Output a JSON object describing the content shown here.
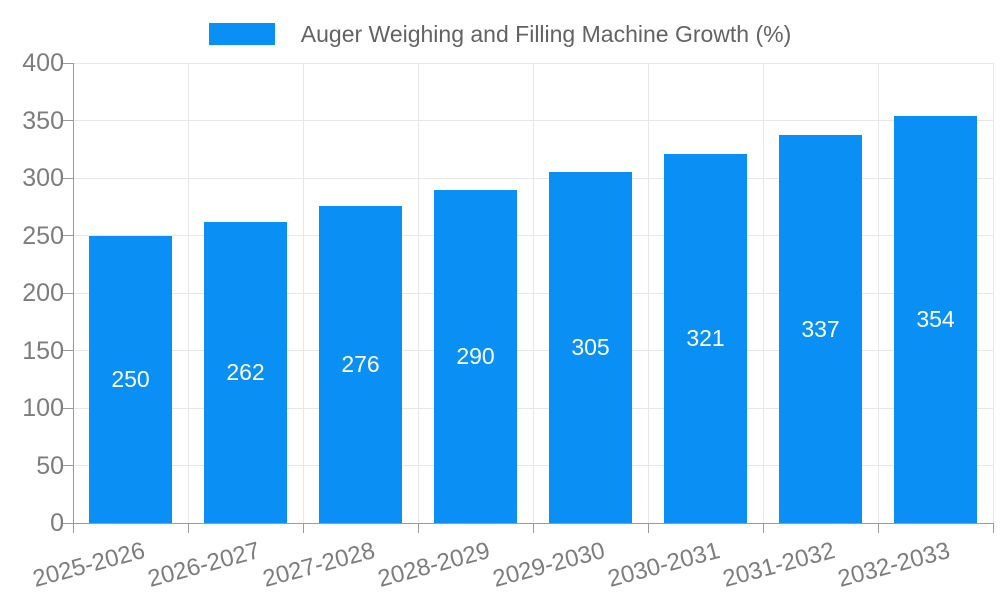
{
  "chart_data": {
    "type": "bar",
    "title": "Auger Weighing and Filling Machine Growth (%)",
    "categories": [
      "2025-2026",
      "2026-2027",
      "2027-2028",
      "2028-2029",
      "2029-2030",
      "2030-2031",
      "2031-2032",
      "2032-2033"
    ],
    "values": [
      250,
      262,
      276,
      290,
      305,
      321,
      337,
      354
    ],
    "xlabel": "",
    "ylabel": "",
    "ylim": [
      0,
      400
    ],
    "ytick_step": 50,
    "yticks": [
      0,
      50,
      100,
      150,
      200,
      250,
      300,
      350,
      400
    ],
    "grid": true,
    "legend_position": "top",
    "bar_labels_inside": true,
    "colors": {
      "bar": "#0a8ff5",
      "bar_value_text": "#ffffff",
      "axis_line": "#9b9b9b",
      "gridline": "#e7e7e7",
      "tick_text": "#7d7d7d",
      "legend_text": "#636363",
      "background": "#ffffff"
    }
  },
  "legend": {
    "label": "Auger Weighing and Filling Machine Growth (%)"
  }
}
